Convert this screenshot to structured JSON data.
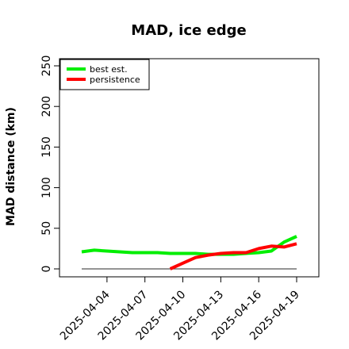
{
  "chart_data": {
    "type": "line",
    "title": "MAD, ice edge",
    "xlabel": "",
    "ylabel": "MAD distance (km)",
    "ylim": [
      0,
      250
    ],
    "xlim": [
      "2025-04-02",
      "2025-04-19"
    ],
    "yticks": [
      0,
      50,
      100,
      150,
      200,
      250
    ],
    "xticks": [
      "2025-04-04",
      "2025-04-07",
      "2025-04-10",
      "2025-04-13",
      "2025-04-16",
      "2025-04-19"
    ],
    "legend_position": "top-left",
    "reference_line": {
      "y": 0,
      "color": "#555555",
      "x_start": "2025-04-02",
      "x_end": "2025-04-19"
    },
    "series": [
      {
        "name": "best est.",
        "color": "#00ee00",
        "x": [
          "2025-04-02",
          "2025-04-03",
          "2025-04-04",
          "2025-04-05",
          "2025-04-06",
          "2025-04-07",
          "2025-04-08",
          "2025-04-09",
          "2025-04-10",
          "2025-04-11",
          "2025-04-12",
          "2025-04-13",
          "2025-04-14",
          "2025-04-15",
          "2025-04-16",
          "2025-04-17",
          "2025-04-18",
          "2025-04-19"
        ],
        "values": [
          21,
          23,
          22,
          21,
          20,
          20,
          20,
          19,
          19,
          19,
          18,
          18,
          18,
          19,
          20,
          22,
          33,
          40
        ]
      },
      {
        "name": "persistence",
        "color": "#ff0000",
        "x": [
          "2025-04-09",
          "2025-04-10",
          "2025-04-11",
          "2025-04-12",
          "2025-04-13",
          "2025-04-14",
          "2025-04-15",
          "2025-04-16",
          "2025-04-17",
          "2025-04-18",
          "2025-04-19"
        ],
        "values": [
          0,
          7,
          14,
          17,
          19,
          20,
          20,
          25,
          28,
          27,
          31
        ]
      }
    ]
  }
}
